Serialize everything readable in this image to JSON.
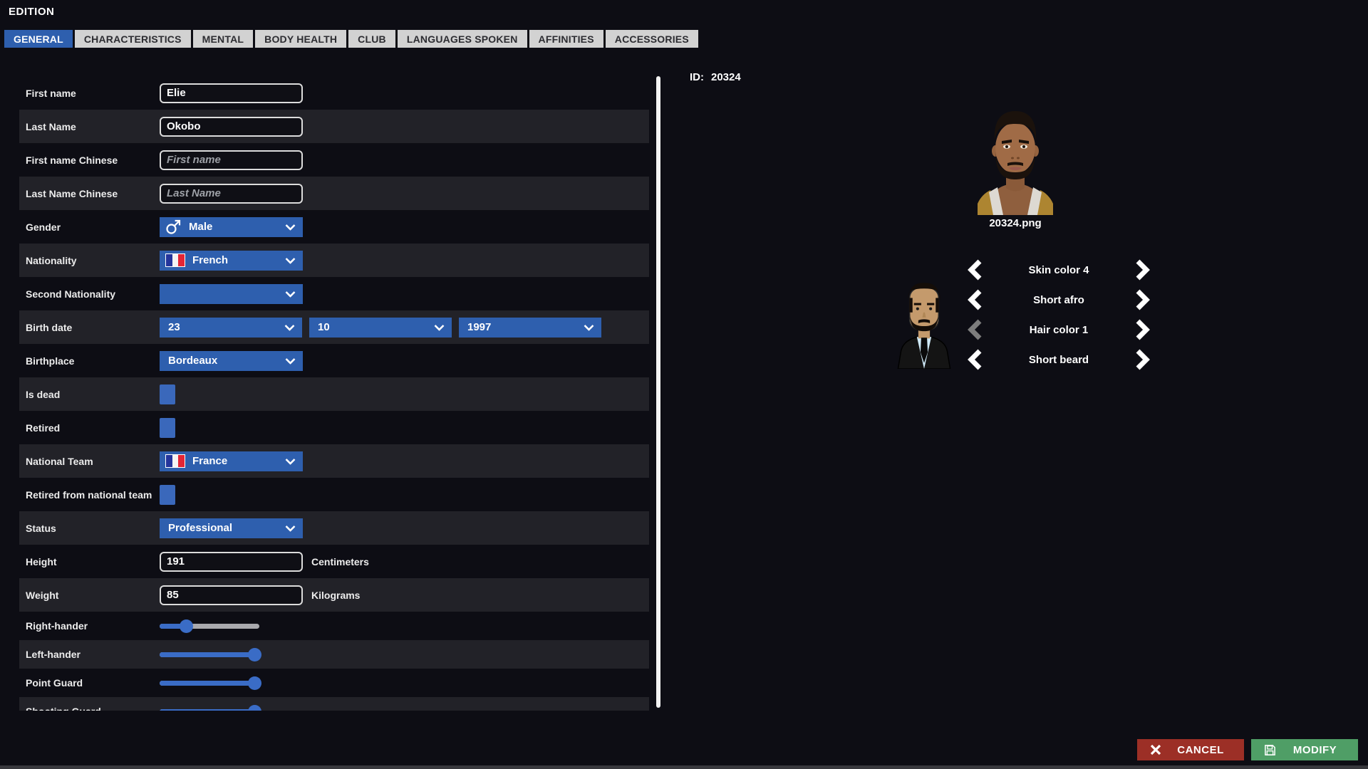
{
  "header": {
    "title": "EDITION"
  },
  "tabs": [
    {
      "label": "GENERAL",
      "active": true
    },
    {
      "label": "CHARACTERISTICS",
      "active": false
    },
    {
      "label": "MENTAL",
      "active": false
    },
    {
      "label": "BODY HEALTH",
      "active": false
    },
    {
      "label": "CLUB",
      "active": false
    },
    {
      "label": "LANGUAGES SPOKEN",
      "active": false
    },
    {
      "label": "AFFINITIES",
      "active": false
    },
    {
      "label": "ACCESSORIES",
      "active": false
    }
  ],
  "form": {
    "rows": [
      {
        "type": "text",
        "label": "First name",
        "value": "Elie",
        "placeholder": ""
      },
      {
        "type": "text",
        "label": "Last Name",
        "value": "Okobo",
        "placeholder": ""
      },
      {
        "type": "text",
        "label": "First name Chinese",
        "value": "",
        "placeholder": "First name"
      },
      {
        "type": "text",
        "label": "Last Name Chinese",
        "value": "",
        "placeholder": "Last Name"
      },
      {
        "type": "select",
        "label": "Gender",
        "value": "Male",
        "icon": "male"
      },
      {
        "type": "select",
        "label": "Nationality",
        "value": "French",
        "icon": "flag-france"
      },
      {
        "type": "select",
        "label": "Second Nationality",
        "value": "",
        "icon": ""
      },
      {
        "type": "birthdate",
        "label": "Birth date",
        "values": [
          "23",
          "10",
          "1997"
        ]
      },
      {
        "type": "select",
        "label": "Birthplace",
        "value": "Bordeaux",
        "icon": ""
      },
      {
        "type": "checkbox",
        "label": "Is dead",
        "checked": false
      },
      {
        "type": "checkbox",
        "label": "Retired",
        "checked": false
      },
      {
        "type": "select",
        "label": "National Team",
        "value": "France",
        "icon": "flag-france"
      },
      {
        "type": "checkbox",
        "label": "Retired from national team",
        "checked": false
      },
      {
        "type": "select",
        "label": "Status",
        "value": "Professional",
        "icon": ""
      },
      {
        "type": "unit",
        "label": "Height",
        "value": "191",
        "unit": "Centimeters"
      },
      {
        "type": "unit",
        "label": "Weight",
        "value": "85",
        "unit": "Kilograms"
      },
      {
        "type": "slider",
        "label": "Right-hander",
        "percent": 27
      },
      {
        "type": "slider",
        "label": "Left-hander",
        "percent": 95
      },
      {
        "type": "slider",
        "label": "Point Guard",
        "percent": 95
      },
      {
        "type": "slider",
        "label": "Shooting Guard",
        "percent": 95
      }
    ]
  },
  "portrait": {
    "id_label": "ID:",
    "id_value": "20324",
    "filename": "20324.png"
  },
  "appearance": {
    "rows": [
      {
        "label": "Skin color 4",
        "left_enabled": true,
        "right_enabled": true
      },
      {
        "label": "Short afro",
        "left_enabled": true,
        "right_enabled": true
      },
      {
        "label": "Hair color 1",
        "left_enabled": false,
        "right_enabled": true
      },
      {
        "label": "Short beard",
        "left_enabled": true,
        "right_enabled": true
      }
    ]
  },
  "footer": {
    "cancel_label": "CANCEL",
    "modify_label": "MODIFY"
  },
  "colors": {
    "accent_blue": "#2e5fae",
    "checkbox_blue": "#3a68bb",
    "slider_blue": "#3a6cc6",
    "slider_track_gray": "#a9a9ad",
    "row_alt": "#222228",
    "background": "#0d0d14",
    "tab_inactive_bg": "#d2d2d2",
    "cancel_red": "#9c2f26",
    "modify_green": "#4f9e66",
    "scrollbar_white": "#f2f2f2"
  }
}
